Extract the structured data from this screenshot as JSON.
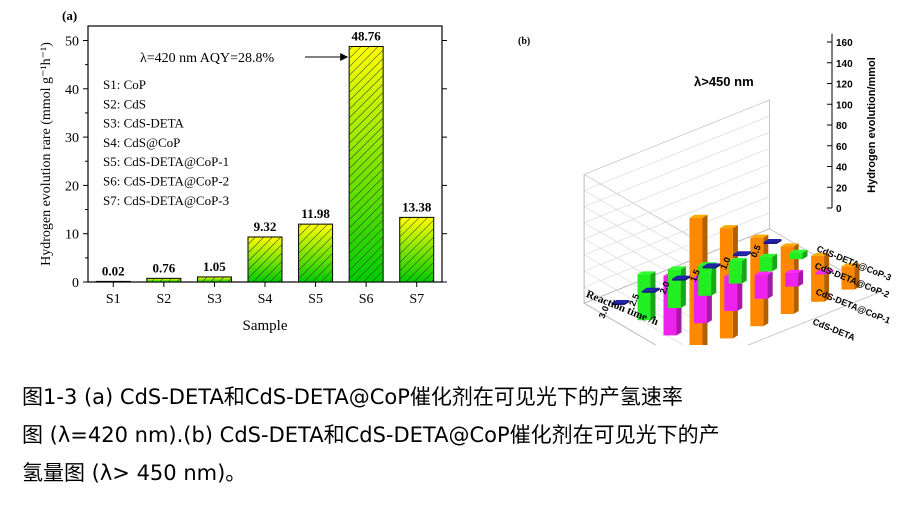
{
  "chart_data": [
    {
      "type": "bar",
      "panel_label": "(a)",
      "categories": [
        "S1",
        "S2",
        "S3",
        "S4",
        "S5",
        "S6",
        "S7"
      ],
      "values": [
        0.02,
        0.76,
        1.05,
        9.32,
        11.98,
        48.76,
        13.38
      ],
      "value_labels": [
        "0.02",
        "0.76",
        "1.05",
        "9.32",
        "11.98",
        "48.76",
        "13.38"
      ],
      "xlabel": "Sample",
      "ylabel": "Hydrogen evolution rare (mmol g⁻¹h⁻¹)",
      "ylim": [
        0,
        53
      ],
      "yticks": [
        0,
        10,
        20,
        30,
        40,
        50
      ],
      "legend_lines": [
        "S1: CoP",
        "S2: CdS",
        "S3: CdS-DETA",
        "S4: CdS@CoP",
        "S5: CdS-DETA@CoP-1",
        "S6: CdS-DETA@CoP-2",
        "S7: CdS-DETA@CoP-3"
      ],
      "annotation": "λ=420 nm  AQY=28.8%",
      "fill_colors": [
        "#ffff00",
        "#00cc00"
      ]
    },
    {
      "type": "bar3d",
      "panel_label": "(b)",
      "annotation": "λ>450 nm",
      "zlabel": "Hydrogen evolution/mmol",
      "zticks": [
        0,
        20,
        40,
        60,
        80,
        100,
        120,
        140,
        160
      ],
      "xlabel": "Reaction time /h",
      "x": [
        "0.5",
        "1.0",
        "1.5",
        "2.0",
        "2.5",
        "3.0"
      ],
      "series": [
        {
          "name": "CdS-DETA",
          "color": "#1a1a8c",
          "values": [
            1.5,
            1.5,
            1.5,
            1.5,
            1.5,
            1.5
          ]
        },
        {
          "name": "CdS-DETA@CoP-1",
          "color": "#22ee22",
          "values": [
            8,
            18,
            28,
            38,
            48,
            57
          ]
        },
        {
          "name": "CdS-DETA@CoP-2",
          "color": "#ee22ee",
          "values": [
            1,
            17,
            30,
            43,
            57,
            74
          ]
        },
        {
          "name": "CdS-DETA@CoP-3",
          "color": "#ff8800",
          "values": [
            29,
            57,
            84,
            110,
            137,
            165
          ]
        }
      ]
    }
  ],
  "caption": {
    "line1": "图1-3 (a) CdS-DETA和CdS-DETA@CoP催化剂在可见光下的产氢速率",
    "line2": "图 (λ=420 nm).(b) CdS-DETA和CdS-DETA@CoP催化剂在可见光下的产",
    "line3": "氢量图 (λ> 450 nm)。"
  }
}
